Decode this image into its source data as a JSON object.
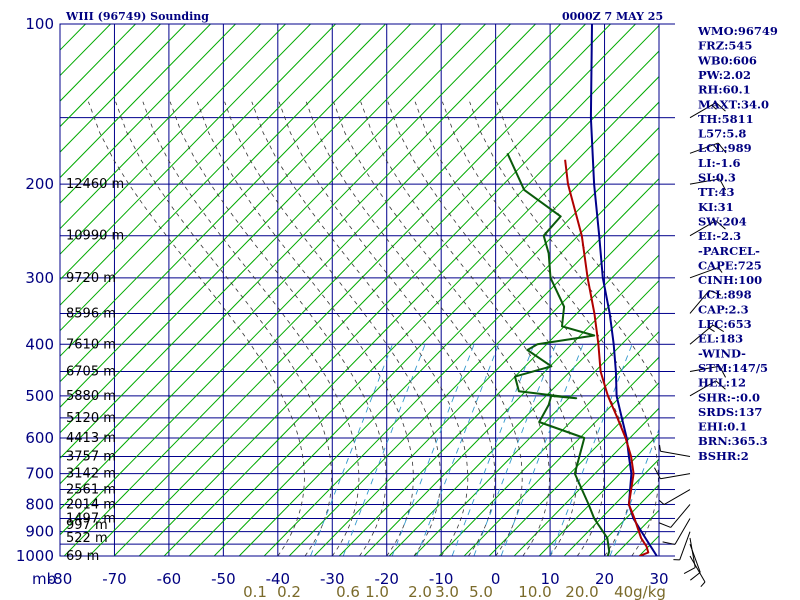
{
  "header": {
    "station": "WIII (96749) Sounding",
    "time": "0000Z  7 MAY 25"
  },
  "colors": {
    "grid": "#00008b",
    "dry_adiabat": "#00aa00",
    "moist_adiabat": "#333333",
    "mixing_ratio": "#3399cc",
    "temperature": "#00008b",
    "dewpoint": "#0a5a0a",
    "parcel": "#b00000",
    "mixing_label": "#7a6a2a",
    "text": "#000080"
  },
  "indices": [
    "WMO:96749",
    "FRZ:545",
    "WB0:606",
    "PW:2.02",
    "RH:60.1",
    "MAXT:34.0",
    "TH:5811",
    "L57:5.8",
    "LCL:989",
    "LI:-1.6",
    "SI:0.3",
    "TT:43",
    "KI:31",
    "SW:204",
    "EI:-2.3",
    "-PARCEL-",
    "CAPE:725",
    "CINH:100",
    "LCL:898",
    "CAP:2.3",
    "LFC:653",
    "EL:183",
    "-WIND-",
    "STM:147/5",
    "HEL:12",
    "SHR:-:0.0",
    "SRDS:137",
    "EHI:0.1",
    "BRN:365.3",
    "BSHR:2"
  ],
  "chart_data": {
    "type": "line",
    "title": "WIII (96749) Sounding",
    "subtitle": "0000Z  7 MAY 25",
    "xlabel": "",
    "ylabel": "mb",
    "xlim": [
      -80,
      30
    ],
    "ylim": [
      1000,
      100
    ],
    "x_ticks": [
      "-80",
      "-70",
      "-60",
      "-50",
      "-40",
      "-30",
      "-20",
      "-10",
      "0",
      "10",
      "20",
      "30"
    ],
    "y_ticks": [
      "100",
      "200",
      "300",
      "400",
      "500",
      "600",
      "700",
      "800",
      "900",
      "1000"
    ],
    "y_axis_corner_label": "mb",
    "mixing_ratio_labels": [
      "0.1",
      "0.2",
      "0.6",
      "1.0",
      "2.0",
      "3.0",
      "5.0",
      "10.0",
      "20.0",
      "40g/kg"
    ],
    "mixing_ratio_values": [
      0.1,
      0.2,
      0.6,
      1.0,
      2.0,
      3.0,
      5.0,
      10.0,
      20.0,
      40.0
    ],
    "height_levels": [
      {
        "p": 1000,
        "label": "69 m"
      },
      {
        "p": 925,
        "label": "522 m"
      },
      {
        "p": 875,
        "label": "997 m"
      },
      {
        "p": 850,
        "label": "1497 m"
      },
      {
        "p": 800,
        "label": "2014 m"
      },
      {
        "p": 750,
        "label": "2561 m"
      },
      {
        "p": 700,
        "label": "3142 m"
      },
      {
        "p": 650,
        "label": "3757 m"
      },
      {
        "p": 600,
        "label": "4413 m"
      },
      {
        "p": 550,
        "label": "5120 m"
      },
      {
        "p": 500,
        "label": "5880 m"
      },
      {
        "p": 450,
        "label": "6705 m"
      },
      {
        "p": 400,
        "label": "7610 m"
      },
      {
        "p": 350,
        "label": "8596 m"
      },
      {
        "p": 300,
        "label": "9720 m"
      },
      {
        "p": 250,
        "label": "10990 m"
      },
      {
        "p": 200,
        "label": "12460 m"
      }
    ],
    "series": [
      {
        "key": "temperature",
        "points": [
          [
            1000,
            29.6
          ],
          [
            925,
            24.2
          ],
          [
            850,
            18.4
          ],
          [
            800,
            15.0
          ],
          [
            700,
            9.8
          ],
          [
            650,
            6.2
          ],
          [
            600,
            2.4
          ],
          [
            550,
            -2.2
          ],
          [
            500,
            -7.2
          ],
          [
            450,
            -11.8
          ],
          [
            400,
            -17.2
          ],
          [
            350,
            -23.6
          ],
          [
            300,
            -31.4
          ],
          [
            250,
            -39.8
          ],
          [
            200,
            -50.2
          ],
          [
            150,
            -63.0
          ],
          [
            100,
            -80.0
          ]
        ]
      },
      {
        "key": "dewpoint",
        "points": [
          [
            1000,
            20.6
          ],
          [
            980,
            20.0
          ],
          [
            925,
            17.2
          ],
          [
            850,
            11.2
          ],
          [
            800,
            7.6
          ],
          [
            700,
            -0.6
          ],
          [
            600,
            -5.4
          ],
          [
            560,
            -16.6
          ],
          [
            520,
            -18.0
          ],
          [
            500,
            -19.2
          ],
          [
            505,
            -14.2
          ],
          [
            490,
            -26.0
          ],
          [
            460,
            -29.4
          ],
          [
            440,
            -24.6
          ],
          [
            410,
            -32.0
          ],
          [
            400,
            -31.2
          ],
          [
            385,
            -22.4
          ],
          [
            370,
            -30.0
          ],
          [
            340,
            -33.2
          ],
          [
            300,
            -41.0
          ],
          [
            270,
            -45.8
          ],
          [
            250,
            -50.0
          ],
          [
            230,
            -50.4
          ],
          [
            205,
            -62.0
          ],
          [
            175,
            -71.8
          ]
        ]
      },
      {
        "key": "parcel",
        "points": [
          [
            1000,
            26.4
          ],
          [
            985,
            27.4
          ],
          [
            960,
            26.0
          ],
          [
            925,
            23.4
          ],
          [
            850,
            18.6
          ],
          [
            800,
            15.0
          ],
          [
            700,
            10.2
          ],
          [
            650,
            6.6
          ],
          [
            600,
            2.2
          ],
          [
            550,
            -3.0
          ],
          [
            500,
            -8.8
          ],
          [
            450,
            -14.6
          ],
          [
            400,
            -20.0
          ],
          [
            350,
            -26.4
          ],
          [
            300,
            -34.2
          ],
          [
            250,
            -43.0
          ],
          [
            200,
            -55.0
          ],
          [
            180,
            -60.0
          ]
        ]
      }
    ],
    "wind_barbs": [
      {
        "p": 1000,
        "dir": 150,
        "speed": 5
      },
      {
        "p": 950,
        "dir": 160,
        "speed": 10
      },
      {
        "p": 925,
        "dir": 170,
        "speed": 10
      },
      {
        "p": 900,
        "dir": 200,
        "speed": 5
      },
      {
        "p": 850,
        "dir": 210,
        "speed": 10
      },
      {
        "p": 800,
        "dir": 220,
        "speed": 10
      },
      {
        "p": 750,
        "dir": 240,
        "speed": 5
      },
      {
        "p": 700,
        "dir": 260,
        "speed": 10
      },
      {
        "p": 650,
        "dir": 280,
        "speed": 5
      },
      {
        "p": 500,
        "dir": 60,
        "speed": 10
      },
      {
        "p": 450,
        "dir": 80,
        "speed": 10
      },
      {
        "p": 400,
        "dir": 50,
        "speed": 15
      },
      {
        "p": 350,
        "dir": 40,
        "speed": 10
      },
      {
        "p": 300,
        "dir": 70,
        "speed": 5
      },
      {
        "p": 250,
        "dir": 60,
        "speed": 10
      },
      {
        "p": 200,
        "dir": 80,
        "speed": 10
      },
      {
        "p": 175,
        "dir": 70,
        "speed": 15
      },
      {
        "p": 150,
        "dir": 60,
        "speed": 15
      }
    ],
    "grid": true,
    "legend": "none"
  }
}
